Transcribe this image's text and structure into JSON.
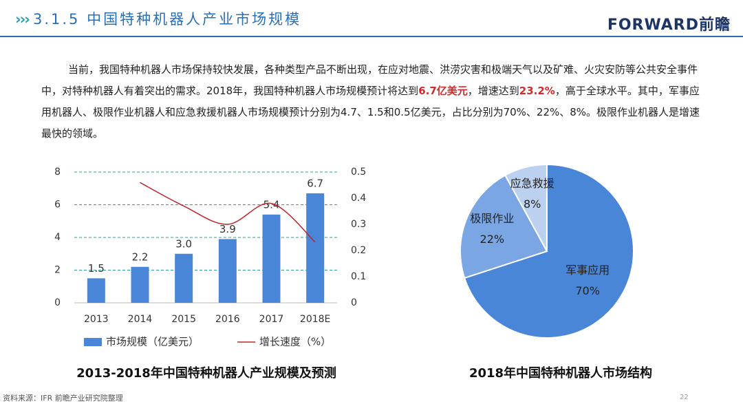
{
  "header": {
    "title": "3.1.5 中国特种机器人产业市场规模",
    "logo": "FORWARD前瞻"
  },
  "paragraph": {
    "segments": [
      {
        "text": "当前，我国特种机器人市场保持较快发展，各种类型产品不断出现，在应对地震、洪涝灾害和极端天气以及矿难、火灾安防等公共安全事件中，对特种机器人有着突出的需求。2018年，我国特种机器人市场规模预计将达到",
        "emphasis": false
      },
      {
        "text": "6.7亿美元",
        "emphasis": true
      },
      {
        "text": "，增速达到",
        "emphasis": false
      },
      {
        "text": "23.2%",
        "emphasis": true
      },
      {
        "text": "，高于全球水平。其中，军事应用机器人、极限作业机器人和应急救援机器人市场规模预计分别为4.7、1.5和0.5亿美元，占比分别为70%、22%、8%。极限作业机器人是增速最快的领域。",
        "emphasis": false
      }
    ]
  },
  "chart_data": [
    {
      "type": "bar",
      "title": "2013-2018年中国特种机器人产业规模及预测",
      "categories": [
        "2013",
        "2014",
        "2015",
        "2016",
        "2017",
        "2018E"
      ],
      "series": [
        {
          "name": "市场规模（亿美元）",
          "color": "#4a86d8",
          "values": [
            1.5,
            2.2,
            3.0,
            3.9,
            5.4,
            6.7
          ],
          "value_labels": [
            "1.5",
            "2.2",
            "3.0",
            "3.9",
            "5.4",
            "6.7"
          ]
        },
        {
          "name": "增长速度（%）",
          "type": "line",
          "axis": "y2",
          "color": "#c0232b",
          "values": [
            null,
            0.46,
            0.37,
            0.3,
            0.38,
            0.232
          ]
        }
      ],
      "ylim": [
        0,
        8
      ],
      "yticks": [
        0,
        2,
        4,
        6,
        8
      ],
      "y2lim": [
        0,
        0.5
      ],
      "y2ticks": [
        0,
        0.1,
        0.2,
        0.3,
        0.4,
        0.5
      ],
      "grid": true
    },
    {
      "type": "pie",
      "title": "2018年中国特种机器人市场结构",
      "categories": [
        "军事应用",
        "极限作业",
        "应急救援"
      ],
      "values": [
        70,
        22,
        8
      ],
      "value_labels": [
        "70%",
        "22%",
        "8%"
      ],
      "colors": [
        "#4a86d8",
        "#7aa6e3",
        "#bcd1f0"
      ]
    }
  ],
  "footer": {
    "source": "资料来源：IFR 前瞻产业研究院整理",
    "page": "22"
  }
}
